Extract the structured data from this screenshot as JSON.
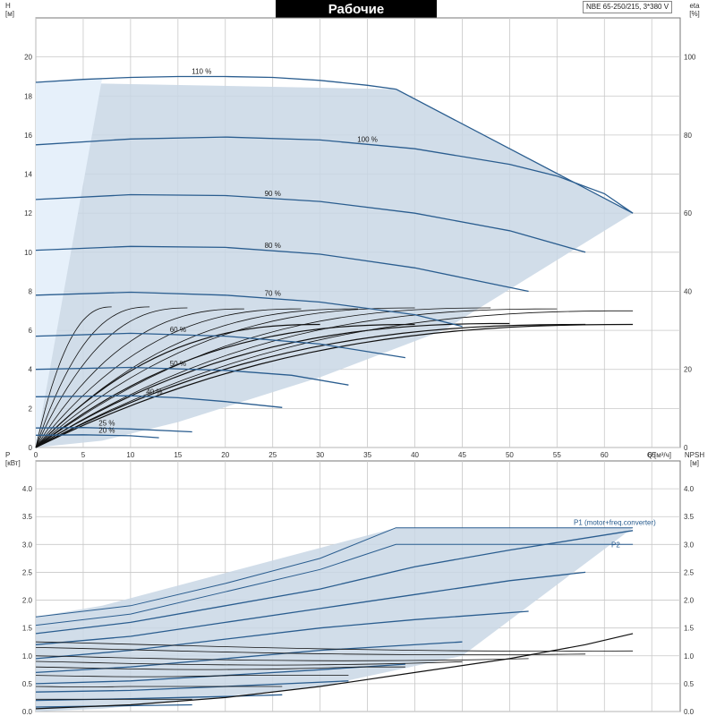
{
  "title": "Рабочие характеристики",
  "model": "NBE 65-250/215, 3*380 V",
  "colors": {
    "curve": "#2a5d8f",
    "envelope": "#c9d7e5",
    "efficiency": "#111111",
    "grid": "#c8c8c8"
  },
  "chart_data": [
    {
      "type": "line",
      "name": "head",
      "ylabel": "H",
      "yunit": "[м]",
      "y2label": "eta",
      "y2unit": "[%]",
      "xlabel": "Q",
      "xunit": "[м³/ч]",
      "xlim": [
        0,
        68
      ],
      "ylim": [
        0,
        22
      ],
      "y2lim": [
        0,
        110
      ],
      "x_ticks": [
        "0",
        "5",
        "10",
        "15",
        "20",
        "25",
        "30",
        "35",
        "40",
        "45",
        "50",
        "55",
        "60",
        "65"
      ],
      "y_ticks": [
        "0",
        "2",
        "4",
        "6",
        "8",
        "10",
        "12",
        "14",
        "16",
        "18",
        "20"
      ],
      "y2_ticks": [
        "0",
        "20",
        "40",
        "60",
        "80",
        "100"
      ],
      "grid": true,
      "series": [
        {
          "name": "110 %",
          "x": [
            0,
            5,
            10,
            15,
            20,
            25,
            30,
            35,
            38
          ],
          "y": [
            18.7,
            18.85,
            18.95,
            19.0,
            19.0,
            18.95,
            18.8,
            18.55,
            18.35
          ]
        },
        {
          "name": "100 %",
          "x": [
            0,
            10,
            20,
            30,
            40,
            50,
            55,
            60,
            63
          ],
          "y": [
            15.5,
            15.8,
            15.9,
            15.75,
            15.3,
            14.5,
            13.9,
            13.0,
            12.0
          ]
        },
        {
          "name": "90 %",
          "x": [
            0,
            10,
            20,
            30,
            40,
            50,
            58
          ],
          "y": [
            12.7,
            12.95,
            12.9,
            12.6,
            12.0,
            11.1,
            10.0
          ]
        },
        {
          "name": "80 %",
          "x": [
            0,
            10,
            20,
            30,
            40,
            45,
            52
          ],
          "y": [
            10.1,
            10.3,
            10.25,
            9.9,
            9.2,
            8.7,
            8.0
          ]
        },
        {
          "name": "70 %",
          "x": [
            0,
            10,
            20,
            30,
            40,
            45
          ],
          "y": [
            7.8,
            7.95,
            7.8,
            7.45,
            6.8,
            6.2
          ]
        },
        {
          "name": "60 %",
          "x": [
            0,
            10,
            20,
            30,
            39
          ],
          "y": [
            5.7,
            5.85,
            5.7,
            5.3,
            4.6
          ]
        },
        {
          "name": "50 %",
          "x": [
            0,
            10,
            20,
            27,
            33
          ],
          "y": [
            4.0,
            4.1,
            3.95,
            3.7,
            3.2
          ]
        },
        {
          "name": "40 %",
          "x": [
            0,
            10,
            15,
            20,
            26
          ],
          "y": [
            2.6,
            2.65,
            2.55,
            2.35,
            2.05
          ]
        },
        {
          "name": "25 %",
          "x": [
            0,
            5,
            10,
            16.5
          ],
          "y": [
            1.0,
            1.02,
            0.95,
            0.8
          ]
        },
        {
          "name": "20 %",
          "x": [
            0,
            5,
            10,
            13
          ],
          "y": [
            0.63,
            0.65,
            0.6,
            0.5
          ]
        }
      ],
      "envelope": {
        "x": [
          0,
          0,
          38,
          63,
          43,
          30,
          15,
          7,
          0
        ],
        "y": [
          0,
          18.7,
          18.35,
          12.0,
          6.0,
          3.6,
          1.3,
          0.35,
          0
        ]
      }
    },
    {
      "type": "line",
      "name": "power",
      "ylabel": "P",
      "yunit": "[кВт]",
      "y2label": "NPSH",
      "y2unit": "[м]",
      "xlim": [
        0,
        68
      ],
      "ylim": [
        0,
        4.5
      ],
      "y2lim": [
        0,
        4.5
      ],
      "y_ticks": [
        "0.0",
        "0.5",
        "1.0",
        "1.5",
        "2.0",
        "2.5",
        "3.0",
        "3.5",
        "4.0"
      ],
      "y2_ticks": [
        "0.0",
        "0.5",
        "1.0",
        "1.5",
        "2.0",
        "2.5",
        "3.0",
        "3.5",
        "4.0"
      ],
      "grid": true,
      "legend": [
        "P1 (motor+freq.converter)",
        "P2"
      ],
      "series": [
        {
          "name": "P1 (motor+freq.converter)",
          "x": [
            0,
            10,
            20,
            30,
            38,
            50,
            63
          ],
          "y": [
            1.7,
            1.9,
            2.3,
            2.75,
            3.3,
            3.3,
            3.3
          ]
        },
        {
          "name": "P2",
          "x": [
            0,
            10,
            20,
            30,
            38,
            50,
            63
          ],
          "y": [
            1.55,
            1.75,
            2.15,
            2.55,
            3.0,
            3.0,
            3.0
          ]
        },
        {
          "x": [
            0,
            10,
            20,
            30,
            40,
            50,
            63
          ],
          "y": [
            1.4,
            1.6,
            1.9,
            2.2,
            2.6,
            2.9,
            3.25
          ]
        },
        {
          "x": [
            0,
            10,
            20,
            30,
            40,
            50,
            58
          ],
          "y": [
            1.2,
            1.35,
            1.6,
            1.85,
            2.1,
            2.35,
            2.5
          ]
        },
        {
          "x": [
            0,
            10,
            20,
            30,
            40,
            52
          ],
          "y": [
            0.95,
            1.1,
            1.3,
            1.5,
            1.65,
            1.8
          ]
        },
        {
          "x": [
            0,
            10,
            20,
            30,
            45
          ],
          "y": [
            0.7,
            0.8,
            0.95,
            1.1,
            1.25
          ]
        },
        {
          "x": [
            0,
            10,
            20,
            30,
            39
          ],
          "y": [
            0.5,
            0.55,
            0.65,
            0.75,
            0.85
          ]
        },
        {
          "x": [
            0,
            10,
            20,
            33
          ],
          "y": [
            0.35,
            0.38,
            0.45,
            0.55
          ]
        },
        {
          "x": [
            0,
            10,
            20,
            26
          ],
          "y": [
            0.2,
            0.23,
            0.27,
            0.3
          ]
        },
        {
          "x": [
            0,
            8,
            16.5
          ],
          "y": [
            0.08,
            0.1,
            0.12
          ]
        }
      ],
      "npsh": {
        "x": [
          0,
          10,
          20,
          30,
          40,
          50,
          58,
          63
        ],
        "y": [
          0.05,
          0.12,
          0.25,
          0.45,
          0.7,
          0.95,
          1.2,
          1.4
        ]
      },
      "envelope": {
        "x": [
          0,
          0,
          7,
          38,
          63,
          45,
          30,
          15,
          7,
          0
        ],
        "y": [
          0,
          1.7,
          1.9,
          3.3,
          3.3,
          1.0,
          0.45,
          0.18,
          0.05,
          0
        ]
      }
    }
  ]
}
